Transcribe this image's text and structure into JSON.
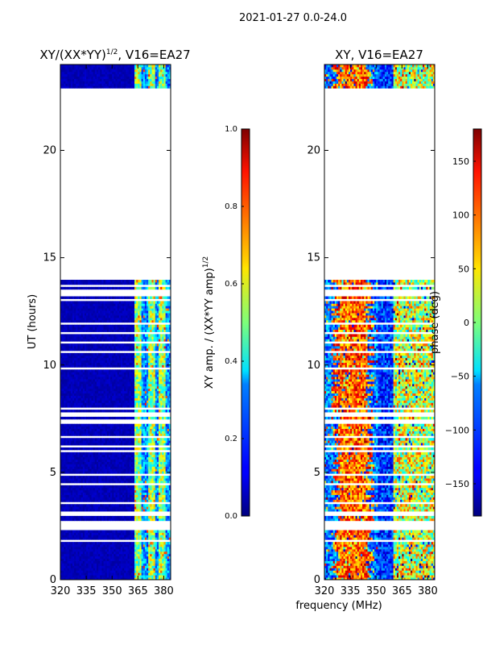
{
  "figure": {
    "title": "2021-01-27 0.0-24.0",
    "xlabel_shared": "frequency (MHz)"
  },
  "chart_data": [
    {
      "type": "heatmap",
      "title": "XY/(XX*YY)",
      "title_exponent": "1/2",
      "title_suffix": ", V16=EA27",
      "ylabel": "UT (hours)",
      "xlim": [
        320,
        384
      ],
      "ylim": [
        0,
        24
      ],
      "xticks": [
        320,
        335,
        350,
        365,
        380
      ],
      "yticks": [
        0,
        5,
        10,
        15,
        20
      ],
      "data_time_ranges_hours": [
        [
          0,
          13.9
        ],
        [
          22.9,
          24
        ]
      ],
      "colorbar": {
        "label": "XY amp. / (XX*YY amp)",
        "label_exponent": "1/2",
        "range": [
          0.0,
          1.0
        ],
        "ticks": [
          "0.0",
          "0.2",
          "0.4",
          "0.6",
          "0.8",
          "1.0"
        ],
        "colormap": "jet"
      }
    },
    {
      "type": "heatmap",
      "title": "XY, V16=EA27",
      "xlim": [
        320,
        384
      ],
      "ylim": [
        0,
        24
      ],
      "xticks": [
        320,
        335,
        350,
        365,
        380
      ],
      "yticks": [
        0,
        5,
        10,
        15,
        20
      ],
      "data_time_ranges_hours": [
        [
          0,
          13.9
        ],
        [
          22.9,
          24
        ]
      ],
      "colorbar": {
        "label": "phase (deg)",
        "range": [
          -180,
          180
        ],
        "ticks": [
          "150",
          "100",
          "50",
          "0",
          "−50",
          "−100",
          "−150"
        ],
        "tick_values": [
          150,
          100,
          50,
          0,
          -50,
          -100,
          -150
        ],
        "colormap": "jet"
      }
    }
  ]
}
